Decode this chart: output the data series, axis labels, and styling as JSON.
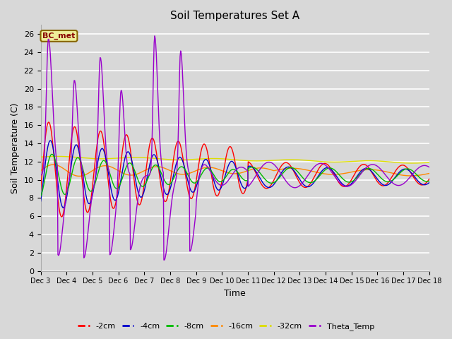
{
  "title": "Soil Temperatures Set A",
  "xlabel": "Time",
  "ylabel": "Soil Temperature (C)",
  "ylim": [
    0,
    27
  ],
  "yticks": [
    0,
    2,
    4,
    6,
    8,
    10,
    12,
    14,
    16,
    18,
    20,
    22,
    24,
    26
  ],
  "xtick_labels": [
    "Dec 3",
    "Dec 4",
    "Dec 5",
    "Dec 6",
    "Dec 7",
    "Dec 8",
    "Dec 9",
    "Dec 10",
    "Dec 11",
    "Dec 12",
    "Dec 13",
    "Dec 14",
    "Dec 15",
    "Dec 16",
    "Dec 17",
    "Dec 18"
  ],
  "series_colors": {
    "-2cm": "#ff0000",
    "-4cm": "#0000cc",
    "-8cm": "#00bb00",
    "-16cm": "#ff8800",
    "-32cm": "#dddd00",
    "Theta_Temp": "#9900cc"
  },
  "legend_label": "BC_met",
  "legend_box_facecolor": "#eeee99",
  "legend_box_edgecolor": "#886600",
  "legend_text_color": "#880000",
  "bg_color": "#d8d8d8",
  "grid_color": "#ffffff",
  "figsize": [
    6.4,
    4.8
  ],
  "dpi": 100
}
